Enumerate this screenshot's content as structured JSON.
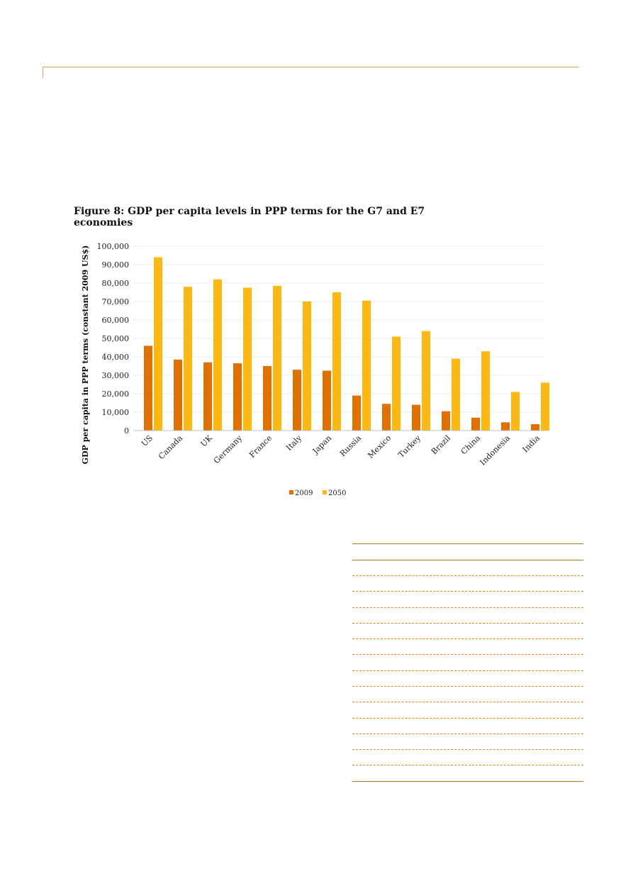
{
  "figure": {
    "title": "Figure 8: GDP per capita levels in PPP terms for the G7 and E7 economies"
  },
  "chart_data": {
    "type": "bar",
    "title": "Figure 8: GDP per capita levels in PPP terms for the G7 and E7 economies",
    "xlabel": "",
    "ylabel": "GDP per capita in PPP terms (constant 2009 US$)",
    "ylim": [
      0,
      100000
    ],
    "yticks": [
      0,
      10000,
      20000,
      30000,
      40000,
      50000,
      60000,
      70000,
      80000,
      90000,
      100000
    ],
    "ytick_labels": [
      "0",
      "10,000",
      "20,000",
      "30,000",
      "40,000",
      "50,000",
      "60,000",
      "70,000",
      "80,000",
      "90,000",
      "100,000"
    ],
    "grid": true,
    "legend_position": "bottom",
    "categories": [
      "US",
      "Canada",
      "UK",
      "Germany",
      "France",
      "Italy",
      "Japan",
      "Russia",
      "Mexico",
      "Turkey",
      "Brazil",
      "China",
      "Indonesia",
      "India"
    ],
    "series": [
      {
        "name": "2009",
        "color": "#e07000",
        "values": [
          46000,
          38500,
          37000,
          36500,
          35000,
          33000,
          32500,
          19000,
          14500,
          14000,
          10500,
          7000,
          4500,
          3500
        ]
      },
      {
        "name": "2050",
        "color": "#fdb813",
        "values": [
          94000,
          78000,
          82000,
          77500,
          78500,
          70000,
          75000,
          70500,
          51000,
          54000,
          39000,
          43000,
          21000,
          26000
        ]
      }
    ]
  }
}
